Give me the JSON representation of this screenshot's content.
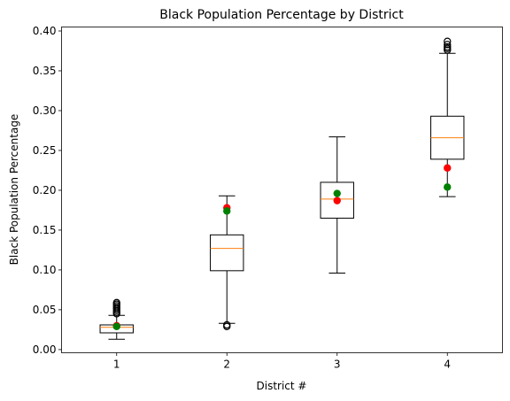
{
  "chart_data": {
    "type": "boxplot",
    "title": "Black Population Percentage by District",
    "xlabel": "District #",
    "ylabel": "Black Population Percentage",
    "ylim": [
      -0.004,
      0.405
    ],
    "xlim": [
      0.5,
      4.5
    ],
    "yticks": [
      "0.00",
      "0.05",
      "0.10",
      "0.15",
      "0.20",
      "0.25",
      "0.30",
      "0.35",
      "0.40"
    ],
    "ytick_values": [
      0.0,
      0.05,
      0.1,
      0.15,
      0.2,
      0.25,
      0.3,
      0.35,
      0.4
    ],
    "categories": [
      "1",
      "2",
      "3",
      "4"
    ],
    "grid": false,
    "colors": {
      "box": "#000000",
      "median": "#ff7f0e",
      "red_point": "#ff0000",
      "green_point": "#008000"
    },
    "boxes": [
      {
        "category": "1",
        "whisker_low": 0.013,
        "q1": 0.021,
        "median": 0.028,
        "q3": 0.031,
        "whisker_high": 0.043,
        "outliers": [
          0.045,
          0.047,
          0.049,
          0.051,
          0.053,
          0.055,
          0.057,
          0.059
        ]
      },
      {
        "category": "2",
        "whisker_low": 0.033,
        "q1": 0.099,
        "median": 0.127,
        "q3": 0.144,
        "whisker_high": 0.193,
        "outliers": [
          0.029,
          0.031
        ]
      },
      {
        "category": "3",
        "whisker_low": 0.096,
        "q1": 0.165,
        "median": 0.189,
        "q3": 0.21,
        "whisker_high": 0.267,
        "outliers": []
      },
      {
        "category": "4",
        "whisker_low": 0.192,
        "q1": 0.239,
        "median": 0.266,
        "q3": 0.293,
        "whisker_high": 0.372,
        "outliers": [
          0.376,
          0.378,
          0.38,
          0.383,
          0.387
        ]
      }
    ],
    "red_points": [
      {
        "x": 1,
        "y": 0.03
      },
      {
        "x": 2,
        "y": 0.178
      },
      {
        "x": 3,
        "y": 0.187
      },
      {
        "x": 4,
        "y": 0.228
      }
    ],
    "green_points": [
      {
        "x": 1,
        "y": 0.029
      },
      {
        "x": 2,
        "y": 0.174
      },
      {
        "x": 3,
        "y": 0.196
      },
      {
        "x": 4,
        "y": 0.204
      }
    ]
  }
}
